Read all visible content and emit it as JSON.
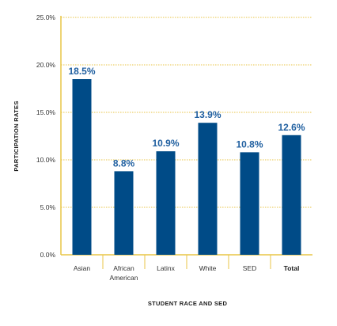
{
  "chart_data": {
    "type": "bar",
    "categories": [
      [
        "Asian"
      ],
      [
        "African",
        "American"
      ],
      [
        "Latinx"
      ],
      [
        "White"
      ],
      [
        "SED"
      ],
      [
        "Total"
      ]
    ],
    "values": [
      18.5,
      8.8,
      10.9,
      13.9,
      10.8,
      12.6
    ],
    "value_labels": [
      "18.5%",
      "8.8%",
      "10.9%",
      "13.9%",
      "10.8%",
      "12.6%"
    ],
    "bold_category_index": 5,
    "xlabel": "STUDENT RACE AND SED",
    "ylabel": "PARTICIPATION RATES",
    "ylim": [
      0,
      25
    ],
    "yticks": [
      0,
      5,
      10,
      15,
      20,
      25
    ],
    "ytick_labels": [
      "0.0%",
      "5.0%",
      "10.0%",
      "15.0%",
      "20.0%",
      "25.0%"
    ],
    "grid": "horizontal dotted",
    "colors": {
      "bar": "#004b87",
      "label": "#1f5fa0",
      "grid": "#e8c547",
      "axis": "#e8c547",
      "separator": "#e8c547"
    }
  }
}
